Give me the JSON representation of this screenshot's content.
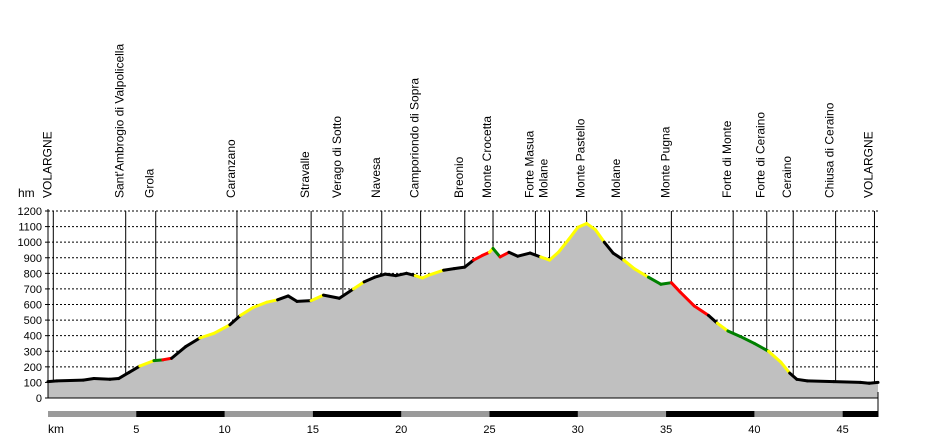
{
  "chart_data": {
    "type": "area",
    "y_unit": "hm",
    "x_unit": "km",
    "xlim": [
      0,
      47
    ],
    "ylim": [
      0,
      1200
    ],
    "y_ticks": [
      0,
      100,
      200,
      300,
      400,
      500,
      600,
      700,
      800,
      900,
      1000,
      1100,
      1200
    ],
    "x_ticks": [
      5,
      10,
      15,
      20,
      25,
      30,
      35,
      40,
      45
    ],
    "grid": true,
    "colors": {
      "fill": "#c0c0c0",
      "normal": "#000000",
      "moderate": "#ffff00",
      "steep": "#ff0000",
      "descent": "#008000"
    },
    "waypoints": [
      {
        "name": "VOLARGNE",
        "km": 0.3
      },
      {
        "name": "Sant'Ambrogio di Valpolicella",
        "km": 4.4
      },
      {
        "name": "Grola",
        "km": 6.1
      },
      {
        "name": "Caranzano",
        "km": 10.7
      },
      {
        "name": "Stravalle",
        "km": 14.9
      },
      {
        "name": "Verago di Sotto",
        "km": 16.7
      },
      {
        "name": "Navesa",
        "km": 18.9
      },
      {
        "name": "Camporiondo di Sopra",
        "km": 21.1
      },
      {
        "name": "Breonio",
        "km": 23.6
      },
      {
        "name": "Monte Crocetta",
        "km": 25.2
      },
      {
        "name": "Forte Masua",
        "km": 27.6
      },
      {
        "name": "Molane",
        "km": 28.4
      },
      {
        "name": "Monte Pastello",
        "km": 30.5
      },
      {
        "name": "Molane",
        "km": 32.5
      },
      {
        "name": "Monte Pugna",
        "km": 35.3
      },
      {
        "name": "Forte di Monte",
        "km": 38.8
      },
      {
        "name": "Forte di Ceraino",
        "km": 40.7
      },
      {
        "name": "Ceraino",
        "km": 42.2
      },
      {
        "name": "Chiusa di Ceraino",
        "km": 44.6
      },
      {
        "name": "VOLARGNE",
        "km": 46.8
      }
    ],
    "profile": [
      {
        "km": 0,
        "alt": 105,
        "grade": "normal"
      },
      {
        "km": 0.5,
        "alt": 110,
        "grade": "normal"
      },
      {
        "km": 2,
        "alt": 115,
        "grade": "normal"
      },
      {
        "km": 2.6,
        "alt": 125,
        "grade": "normal"
      },
      {
        "km": 3.5,
        "alt": 120,
        "grade": "normal"
      },
      {
        "km": 4,
        "alt": 125,
        "grade": "normal"
      },
      {
        "km": 4.6,
        "alt": 165,
        "grade": "normal"
      },
      {
        "km": 5.2,
        "alt": 205,
        "grade": "normal"
      },
      {
        "km": 6,
        "alt": 240,
        "grade": "yellow"
      },
      {
        "km": 6.5,
        "alt": 245,
        "grade": "green"
      },
      {
        "km": 7,
        "alt": 255,
        "grade": "red"
      },
      {
        "km": 7.8,
        "alt": 330,
        "grade": "normal"
      },
      {
        "km": 8.6,
        "alt": 385,
        "grade": "normal"
      },
      {
        "km": 9.4,
        "alt": 415,
        "grade": "yellow"
      },
      {
        "km": 10.3,
        "alt": 470,
        "grade": "yellow"
      },
      {
        "km": 10.9,
        "alt": 530,
        "grade": "normal"
      },
      {
        "km": 11.6,
        "alt": 580,
        "grade": "yellow"
      },
      {
        "km": 12.4,
        "alt": 615,
        "grade": "yellow"
      },
      {
        "km": 13,
        "alt": 630,
        "grade": "yellow"
      },
      {
        "km": 13.6,
        "alt": 655,
        "grade": "normal"
      },
      {
        "km": 14.1,
        "alt": 620,
        "grade": "normal"
      },
      {
        "km": 14.9,
        "alt": 625,
        "grade": "normal"
      },
      {
        "km": 15.6,
        "alt": 660,
        "grade": "yellow"
      },
      {
        "km": 16.5,
        "alt": 640,
        "grade": "normal"
      },
      {
        "km": 17.3,
        "alt": 700,
        "grade": "normal"
      },
      {
        "km": 17.9,
        "alt": 745,
        "grade": "yellow"
      },
      {
        "km": 18.5,
        "alt": 775,
        "grade": "normal"
      },
      {
        "km": 19.1,
        "alt": 795,
        "grade": "normal"
      },
      {
        "km": 19.7,
        "alt": 785,
        "grade": "normal"
      },
      {
        "km": 20.3,
        "alt": 800,
        "grade": "normal"
      },
      {
        "km": 20.8,
        "alt": 785,
        "grade": "normal"
      },
      {
        "km": 21.2,
        "alt": 770,
        "grade": "yellow"
      },
      {
        "km": 21.6,
        "alt": 790,
        "grade": "yellow"
      },
      {
        "km": 22.4,
        "alt": 820,
        "grade": "yellow"
      },
      {
        "km": 23,
        "alt": 830,
        "grade": "normal"
      },
      {
        "km": 23.6,
        "alt": 840,
        "grade": "normal"
      },
      {
        "km": 24.1,
        "alt": 885,
        "grade": "normal"
      },
      {
        "km": 24.6,
        "alt": 915,
        "grade": "red"
      },
      {
        "km": 25,
        "alt": 935,
        "grade": "red"
      },
      {
        "km": 25.2,
        "alt": 960,
        "grade": "yellow"
      },
      {
        "km": 25.6,
        "alt": 905,
        "grade": "green"
      },
      {
        "km": 26.1,
        "alt": 935,
        "grade": "red"
      },
      {
        "km": 26.6,
        "alt": 910,
        "grade": "normal"
      },
      {
        "km": 27.3,
        "alt": 930,
        "grade": "normal"
      },
      {
        "km": 27.9,
        "alt": 905,
        "grade": "normal"
      },
      {
        "km": 28.4,
        "alt": 885,
        "grade": "yellow"
      },
      {
        "km": 28.9,
        "alt": 935,
        "grade": "yellow"
      },
      {
        "km": 29.5,
        "alt": 1020,
        "grade": "yellow"
      },
      {
        "km": 30,
        "alt": 1095,
        "grade": "yellow"
      },
      {
        "km": 30.5,
        "alt": 1120,
        "grade": "yellow"
      },
      {
        "km": 31,
        "alt": 1080,
        "grade": "yellow"
      },
      {
        "km": 31.5,
        "alt": 1000,
        "grade": "yellow"
      },
      {
        "km": 32,
        "alt": 930,
        "grade": "normal"
      },
      {
        "km": 32.6,
        "alt": 885,
        "grade": "normal"
      },
      {
        "km": 33.2,
        "alt": 830,
        "grade": "yellow"
      },
      {
        "km": 34,
        "alt": 775,
        "grade": "yellow"
      },
      {
        "km": 34.7,
        "alt": 730,
        "grade": "green"
      },
      {
        "km": 35.3,
        "alt": 740,
        "grade": "green"
      },
      {
        "km": 35.8,
        "alt": 680,
        "grade": "red"
      },
      {
        "km": 36.6,
        "alt": 590,
        "grade": "red"
      },
      {
        "km": 37.4,
        "alt": 530,
        "grade": "red"
      },
      {
        "km": 37.9,
        "alt": 480,
        "grade": "normal"
      },
      {
        "km": 38.5,
        "alt": 430,
        "grade": "yellow"
      },
      {
        "km": 39.2,
        "alt": 395,
        "grade": "green"
      },
      {
        "km": 40,
        "alt": 350,
        "grade": "green"
      },
      {
        "km": 40.8,
        "alt": 300,
        "grade": "green"
      },
      {
        "km": 41.5,
        "alt": 230,
        "grade": "yellow"
      },
      {
        "km": 42,
        "alt": 160,
        "grade": "yellow"
      },
      {
        "km": 42.4,
        "alt": 120,
        "grade": "normal"
      },
      {
        "km": 43,
        "alt": 110,
        "grade": "normal"
      },
      {
        "km": 44.5,
        "alt": 105,
        "grade": "normal"
      },
      {
        "km": 46,
        "alt": 100,
        "grade": "normal"
      },
      {
        "km": 46.5,
        "alt": 95,
        "grade": "normal"
      },
      {
        "km": 47,
        "alt": 100,
        "grade": "normal"
      }
    ]
  }
}
